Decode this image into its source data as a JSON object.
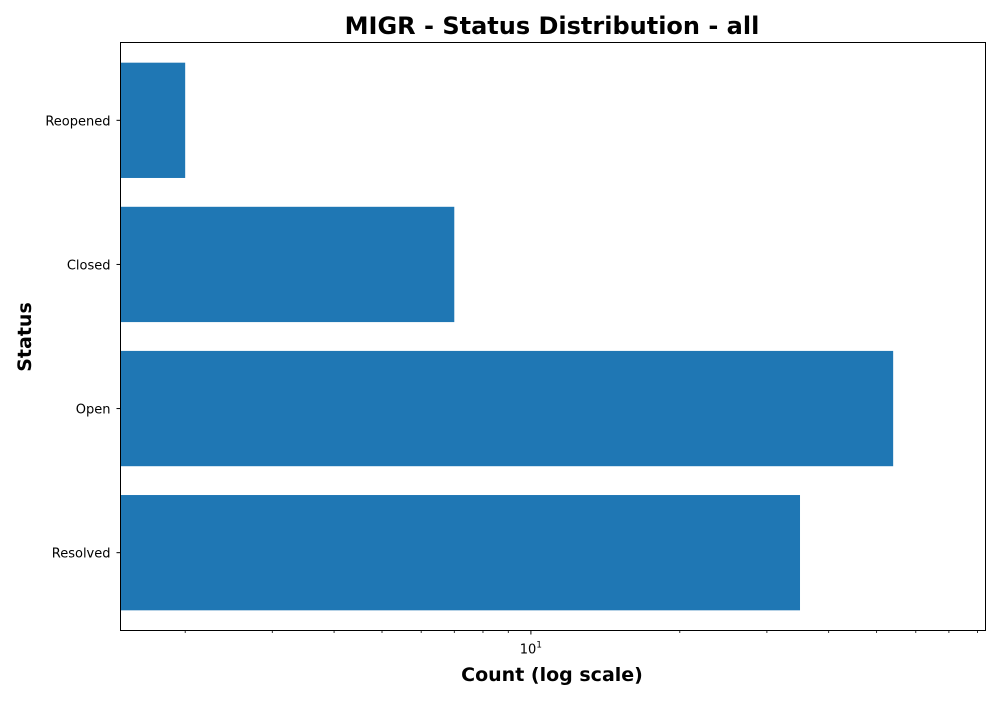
{
  "chart_data": {
    "type": "bar",
    "orientation": "horizontal",
    "title": "MIGR - Status Distribution - all",
    "xlabel": "Count (log scale)",
    "ylabel": "Status",
    "x_scale": "log",
    "xlim": [
      1.48,
      83
    ],
    "x_tick_labels": [
      {
        "value": 10,
        "base": "10",
        "exponent": "1"
      }
    ],
    "categories": [
      "Reopened",
      "Closed",
      "Open",
      "Resolved"
    ],
    "values": [
      2,
      7,
      54,
      35
    ],
    "bar_color": "#1f77b4",
    "grid": false,
    "legend": "none"
  }
}
